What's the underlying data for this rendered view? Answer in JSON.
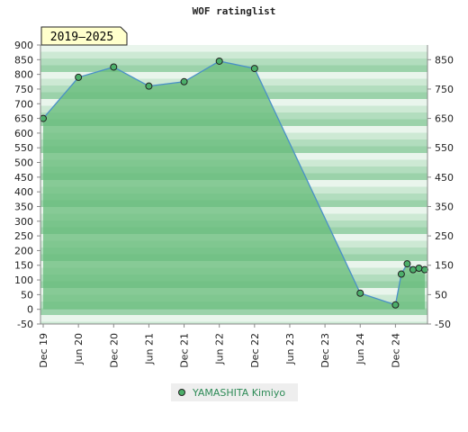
{
  "chart_data": {
    "type": "area",
    "title": "WOF ratinglist",
    "range_badge": "2019–2025",
    "x_ticks": [
      "Dec 19",
      "Jun 20",
      "Dec 20",
      "Jun 21",
      "Dec 21",
      "Jun 22",
      "Dec 22",
      "Jun 23",
      "Dec 23",
      "Jun 24",
      "Dec 24"
    ],
    "x_range": [
      "2019-12",
      "2025-05"
    ],
    "y_left_ticks": [
      -50,
      0,
      50,
      100,
      150,
      200,
      250,
      300,
      350,
      400,
      450,
      500,
      550,
      600,
      650,
      700,
      750,
      800,
      850,
      900
    ],
    "y_right_ticks": [
      -50,
      50,
      150,
      250,
      350,
      450,
      550,
      650,
      750,
      850
    ],
    "ylim": [
      -50,
      900
    ],
    "grid": "horizontal bands",
    "legend_position": "bottom",
    "series": [
      {
        "name": "YAMASHITA Kimiyo",
        "color": "#2e8b57",
        "points": [
          {
            "x": "2019-12",
            "y": 650
          },
          {
            "x": "2020-06",
            "y": 790
          },
          {
            "x": "2020-12",
            "y": 825
          },
          {
            "x": "2021-06",
            "y": 760
          },
          {
            "x": "2021-12",
            "y": 775
          },
          {
            "x": "2022-06",
            "y": 845
          },
          {
            "x": "2022-12",
            "y": 820
          },
          {
            "x": "2024-06",
            "y": 55
          },
          {
            "x": "2024-12",
            "y": 15
          },
          {
            "x": "2025-01",
            "y": 120
          },
          {
            "x": "2025-02",
            "y": 155
          },
          {
            "x": "2025-03",
            "y": 135
          },
          {
            "x": "2025-04",
            "y": 140
          },
          {
            "x": "2025-05",
            "y": 135
          }
        ]
      }
    ]
  }
}
